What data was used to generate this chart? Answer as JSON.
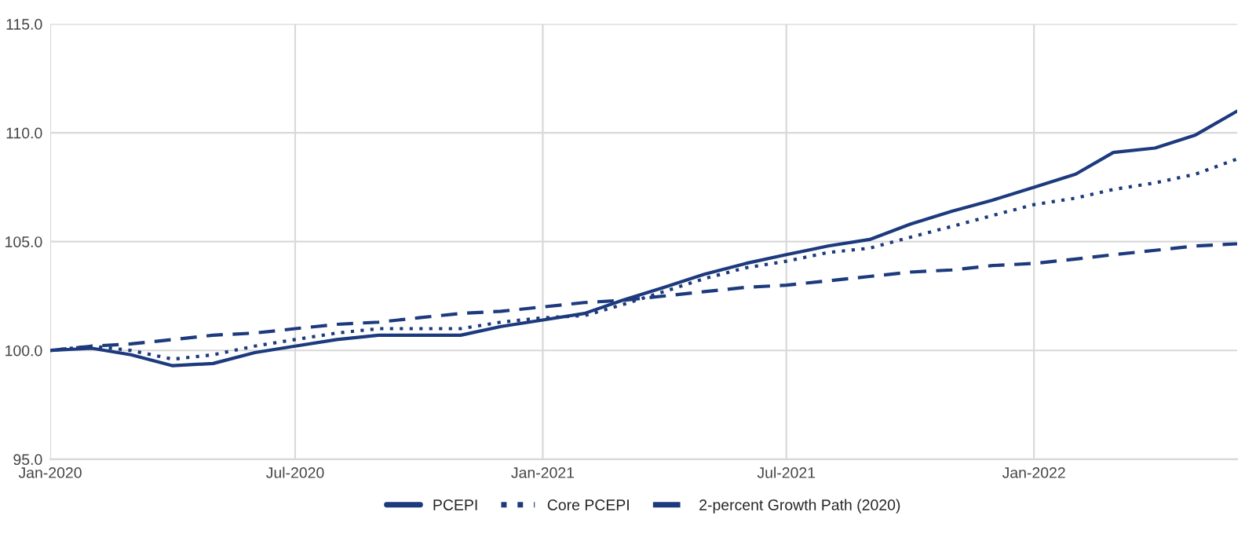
{
  "chart_data": {
    "type": "line",
    "x": [
      "2020-01",
      "2020-02",
      "2020-03",
      "2020-04",
      "2020-05",
      "2020-06",
      "2020-07",
      "2020-08",
      "2020-09",
      "2020-10",
      "2020-11",
      "2020-12",
      "2021-01",
      "2021-02",
      "2021-03",
      "2021-04",
      "2021-05",
      "2021-06",
      "2021-07",
      "2021-08",
      "2021-09",
      "2021-10",
      "2021-11",
      "2021-12",
      "2022-01",
      "2022-02",
      "2022-03",
      "2022-04",
      "2022-05",
      "2022-06"
    ],
    "series": [
      {
        "name": "PCEPI",
        "color": "#1c3a7d",
        "line_style": "solid",
        "values": [
          100.0,
          100.1,
          99.8,
          99.3,
          99.4,
          99.9,
          100.2,
          100.5,
          100.7,
          100.7,
          100.7,
          101.1,
          101.4,
          101.7,
          102.3,
          102.9,
          103.5,
          104.0,
          104.4,
          104.8,
          105.1,
          105.8,
          106.4,
          106.9,
          107.5,
          108.1,
          109.1,
          109.3,
          109.9,
          111.0
        ]
      },
      {
        "name": "Core PCEPI",
        "color": "#1c3a7d",
        "line_style": "dotted",
        "values": [
          100.0,
          100.2,
          100.0,
          99.6,
          99.8,
          100.2,
          100.5,
          100.8,
          101.0,
          101.0,
          101.0,
          101.3,
          101.5,
          101.6,
          102.1,
          102.7,
          103.3,
          103.8,
          104.1,
          104.5,
          104.7,
          105.2,
          105.7,
          106.2,
          106.7,
          107.0,
          107.4,
          107.7,
          108.1,
          108.8
        ]
      },
      {
        "name": "2-percent Growth Path (2020)",
        "color": "#1c3a7d",
        "line_style": "dashed",
        "values": [
          100.0,
          100.2,
          100.3,
          100.5,
          100.7,
          100.8,
          101.0,
          101.2,
          101.3,
          101.5,
          101.7,
          101.8,
          102.0,
          102.2,
          102.3,
          102.5,
          102.7,
          102.9,
          103.0,
          103.2,
          103.4,
          103.6,
          103.7,
          103.9,
          104.0,
          104.2,
          104.4,
          104.6,
          104.8,
          104.9
        ]
      }
    ],
    "xlim": [
      "2020-01",
      "2022-06"
    ],
    "xticks": [
      {
        "value": "2020-01",
        "label": "Jan-2020"
      },
      {
        "value": "2020-07",
        "label": "Jul-2020"
      },
      {
        "value": "2021-01",
        "label": "Jan-2021"
      },
      {
        "value": "2021-07",
        "label": "Jul-2021"
      },
      {
        "value": "2022-01",
        "label": "Jan-2022"
      }
    ],
    "ylim": [
      95,
      115
    ],
    "yticks": [
      {
        "value": 95,
        "label": "95.0"
      },
      {
        "value": 100,
        "label": "100.0"
      },
      {
        "value": 105,
        "label": "105.0"
      },
      {
        "value": 110,
        "label": "110.0"
      },
      {
        "value": 115,
        "label": "115.0"
      }
    ],
    "grid": true,
    "legend": "bottom"
  }
}
